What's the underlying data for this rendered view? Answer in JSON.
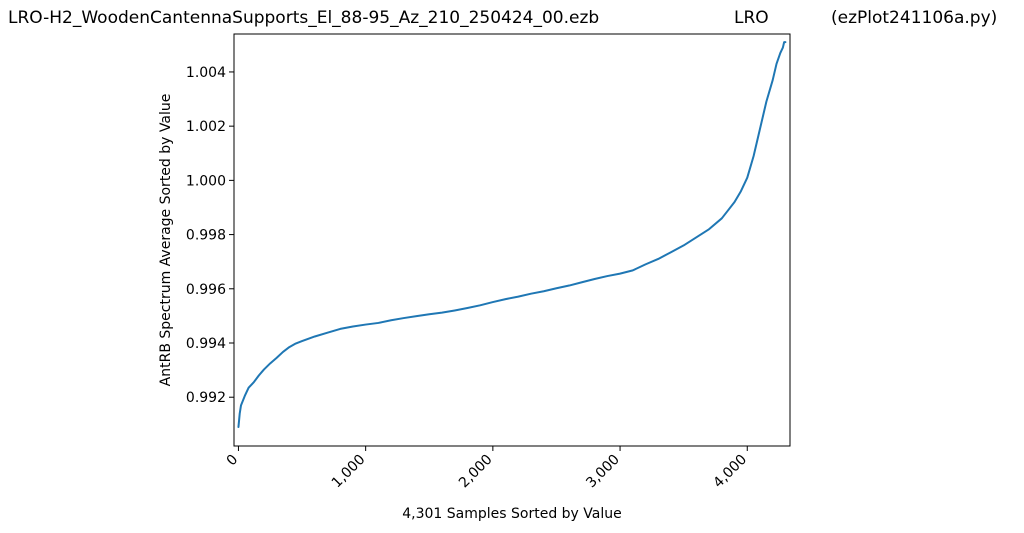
{
  "header": {
    "filename": "LRO-H2_WoodenCantennaSupports_El_88-95_Az_210_250424_00.ezb",
    "site": "LRO",
    "script": "(ezPlot241106a.py)"
  },
  "chart_data": {
    "type": "line",
    "title": "",
    "xlabel": "4,301 Samples Sorted by Value",
    "ylabel": "AntRB Spectrum Average Sorted by Value",
    "xlim": [
      -35,
      4336
    ],
    "ylim": [
      0.9902,
      1.0054
    ],
    "xticks": [
      0,
      1000,
      2000,
      3000,
      4000
    ],
    "xtick_labels": [
      "0",
      "1,000",
      "2,000",
      "3,000",
      "4,000"
    ],
    "yticks": [
      0.992,
      0.994,
      0.996,
      0.998,
      1.0,
      1.002,
      1.004
    ],
    "ytick_labels": [
      "0.992",
      "0.994",
      "0.996",
      "0.998",
      "1.000",
      "1.002",
      "1.004"
    ],
    "grid": false,
    "color": "#1f77b4",
    "series": [
      {
        "x": [
          0,
          10,
          20,
          50,
          80,
          120,
          160,
          200,
          250,
          300,
          350,
          400,
          450,
          500,
          600,
          700,
          800,
          900,
          1000,
          1100,
          1200,
          1300,
          1400,
          1500,
          1600,
          1700,
          1800,
          1900,
          2000,
          2100,
          2200,
          2300,
          2400,
          2500,
          2600,
          2700,
          2800,
          2900,
          3000,
          3100,
          3200,
          3300,
          3400,
          3500,
          3600,
          3700,
          3800,
          3850,
          3900,
          3950,
          4000,
          4050,
          4100,
          4150,
          4200,
          4230,
          4260,
          4280,
          4290,
          4300
        ],
        "y": [
          0.9909,
          0.9914,
          0.9917,
          0.99205,
          0.99235,
          0.99255,
          0.9928,
          0.99302,
          0.99325,
          0.99345,
          0.99367,
          0.99385,
          0.99398,
          0.99407,
          0.99424,
          0.99438,
          0.99452,
          0.99461,
          0.99468,
          0.99474,
          0.99484,
          0.99492,
          0.99499,
          0.99506,
          0.99512,
          0.9952,
          0.99529,
          0.99539,
          0.99551,
          0.99562,
          0.99571,
          0.99582,
          0.99591,
          0.99602,
          0.99612,
          0.99624,
          0.99636,
          0.99647,
          0.99656,
          0.99668,
          0.9969,
          0.9971,
          0.99735,
          0.9976,
          0.9979,
          0.9982,
          0.9986,
          0.9989,
          0.9992,
          0.9996,
          1.0001,
          1.0009,
          1.0019,
          1.0029,
          1.0037,
          1.0043,
          1.0047,
          1.0049,
          1.0051,
          1.0051
        ]
      }
    ]
  }
}
